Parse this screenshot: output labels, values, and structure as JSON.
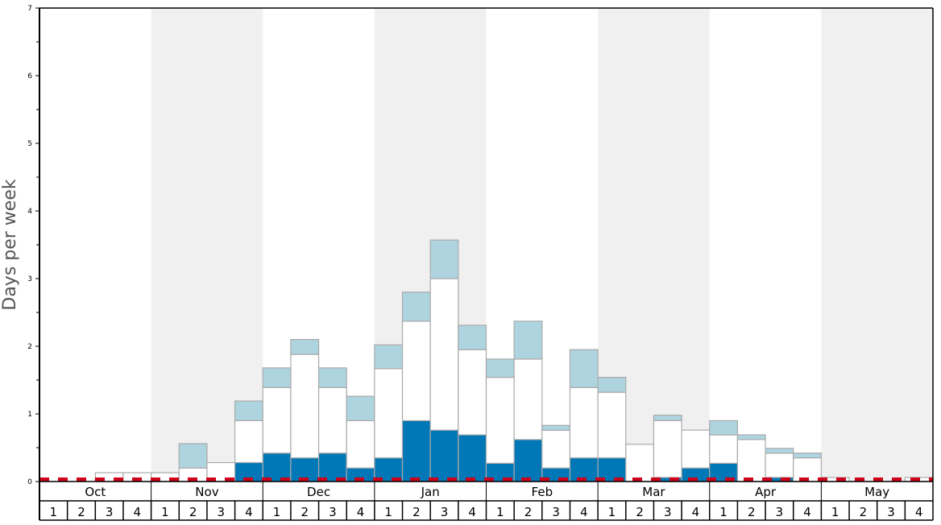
{
  "chart_data": {
    "type": "bar",
    "stacked": true,
    "ylabel": "Days per week",
    "xlabel": "",
    "ylim": [
      0,
      7
    ],
    "yticks": [
      "0",
      "1",
      "2",
      "3",
      "4",
      "5",
      "6",
      "7"
    ],
    "months": [
      "Oct",
      "Nov",
      "Dec",
      "Jan",
      "Feb",
      "Mar",
      "Apr",
      "May"
    ],
    "week_labels": [
      "1",
      "2",
      "3",
      "4"
    ],
    "shaded_months": [
      "Nov",
      "Jan",
      "Mar",
      "May"
    ],
    "reference_line": {
      "value": 0.03,
      "style": "dashed",
      "color": "#d0021b"
    },
    "colors": {
      "bottom": "#0077b6",
      "middle": "#ffffff",
      "top": "#aed4e0",
      "shade": "#f0f0f0",
      "bar_edge": "#aaaaaa"
    },
    "series": [
      {
        "values": [
          0,
          0,
          0,
          0,
          0,
          0,
          0,
          0.28,
          0.42,
          0.35,
          0.42,
          0.2,
          0.35,
          0.9,
          0.76,
          0.69,
          0.27,
          0.62,
          0.2,
          0.35,
          0.35,
          0,
          0.06,
          0.2,
          0.27,
          0,
          0.06,
          0,
          0,
          0,
          0,
          0
        ]
      },
      {
        "values": [
          0,
          0,
          0.13,
          0.13,
          0.13,
          0.2,
          0.28,
          0.62,
          0.97,
          1.53,
          0.97,
          0.7,
          1.32,
          1.47,
          2.24,
          1.26,
          1.27,
          1.19,
          0.56,
          1.04,
          0.97,
          0.55,
          0.84,
          0.56,
          0.42,
          0.62,
          0.36,
          0.35,
          0.06,
          0,
          0,
          0.06
        ]
      },
      {
        "values": [
          0,
          0,
          0,
          0,
          0,
          0.36,
          0,
          0.29,
          0.29,
          0.22,
          0.29,
          0.36,
          0.35,
          0.43,
          0.57,
          0.36,
          0.27,
          0.56,
          0.07,
          0.56,
          0.22,
          0,
          0.08,
          0,
          0.21,
          0.07,
          0.07,
          0.07,
          0,
          0,
          0,
          0
        ]
      }
    ]
  }
}
